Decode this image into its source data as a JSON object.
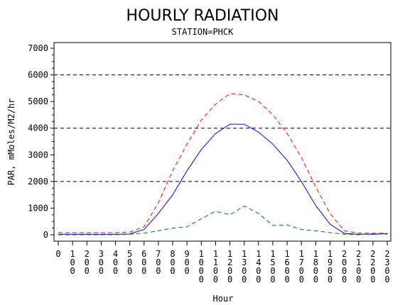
{
  "chart_data": {
    "type": "line",
    "title": "HOURLY RADIATION",
    "subtitle": "STATION=PHCK",
    "xlabel": "Hour",
    "ylabel": "PAR, mMoles/M2/hr",
    "x": [
      "0",
      "100",
      "200",
      "300",
      "400",
      "500",
      "600",
      "700",
      "800",
      "900",
      "1000",
      "1100",
      "1200",
      "1300",
      "1400",
      "1500",
      "1600",
      "1700",
      "1800",
      "1900",
      "2000",
      "2100",
      "2200",
      "2300"
    ],
    "x_tick_labels": [
      "0",
      "100",
      "200",
      "300",
      "400",
      "500",
      "600",
      "700",
      "800",
      "900",
      "1000",
      "1100",
      "1200",
      "1300",
      "1400",
      "1500",
      "1600",
      "1700",
      "1800",
      "1900",
      "2000",
      "2100",
      "2200",
      "2300"
    ],
    "ylim": [
      0,
      7000
    ],
    "y_ticks": [
      "0",
      "1000",
      "2000",
      "3000",
      "4000",
      "5000",
      "6000",
      "7000"
    ],
    "reference_lines": [
      2000,
      4000,
      6000
    ],
    "series": [
      {
        "color": "#ff0000",
        "dash": "dashed",
        "values": [
          80,
          80,
          80,
          80,
          80,
          100,
          300,
          1200,
          2400,
          3400,
          4300,
          4900,
          5300,
          5250,
          5000,
          4500,
          3800,
          2900,
          1800,
          800,
          150,
          60,
          60,
          60
        ]
      },
      {
        "color": "#0000ff",
        "dash": "solid",
        "values": [
          20,
          20,
          20,
          20,
          20,
          30,
          200,
          800,
          1500,
          2400,
          3200,
          3800,
          4150,
          4150,
          3850,
          3400,
          2800,
          2000,
          1100,
          400,
          50,
          20,
          20,
          40
        ]
      },
      {
        "color": "#008000",
        "dash": "dashed",
        "values": [
          0,
          0,
          0,
          0,
          0,
          20,
          60,
          150,
          250,
          300,
          600,
          880,
          750,
          1080,
          800,
          350,
          370,
          200,
          150,
          80,
          20,
          0,
          50,
          20
        ]
      }
    ]
  }
}
